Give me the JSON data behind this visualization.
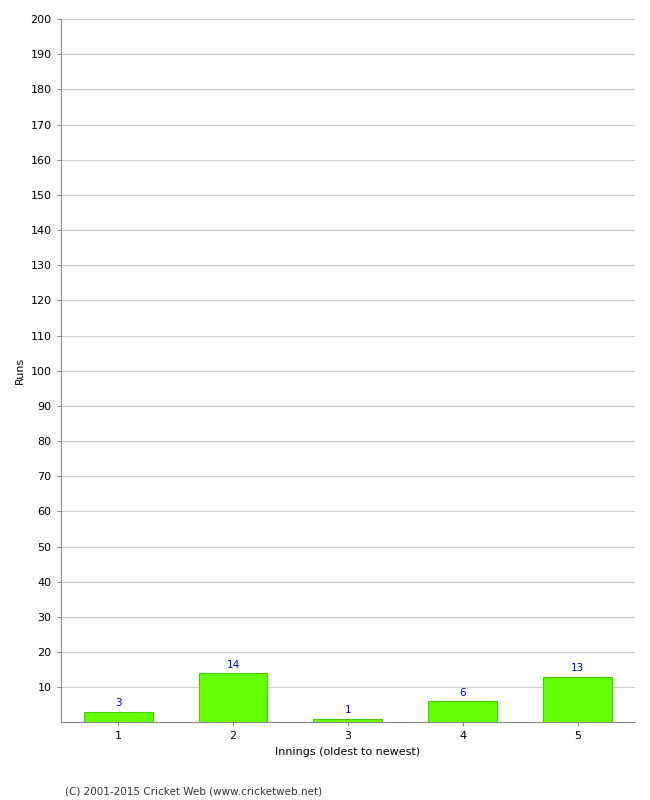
{
  "innings": [
    1,
    2,
    3,
    4,
    5
  ],
  "runs": [
    3,
    14,
    1,
    6,
    13
  ],
  "bar_color": "#66ff00",
  "bar_edgecolor": "#44cc00",
  "label_color": "#0000cc",
  "xlabel": "Innings (oldest to newest)",
  "ylabel": "Runs",
  "ylim": [
    0,
    200
  ],
  "yticks": [
    10,
    20,
    30,
    40,
    50,
    60,
    70,
    80,
    90,
    100,
    110,
    120,
    130,
    140,
    150,
    160,
    170,
    180,
    190,
    200
  ],
  "background_color": "#ffffff",
  "grid_color": "#cccccc",
  "footer": "(C) 2001-2015 Cricket Web (www.cricketweb.net)",
  "label_fontsize": 7.5,
  "axis_label_fontsize": 8,
  "tick_fontsize": 8,
  "footer_fontsize": 7.5
}
